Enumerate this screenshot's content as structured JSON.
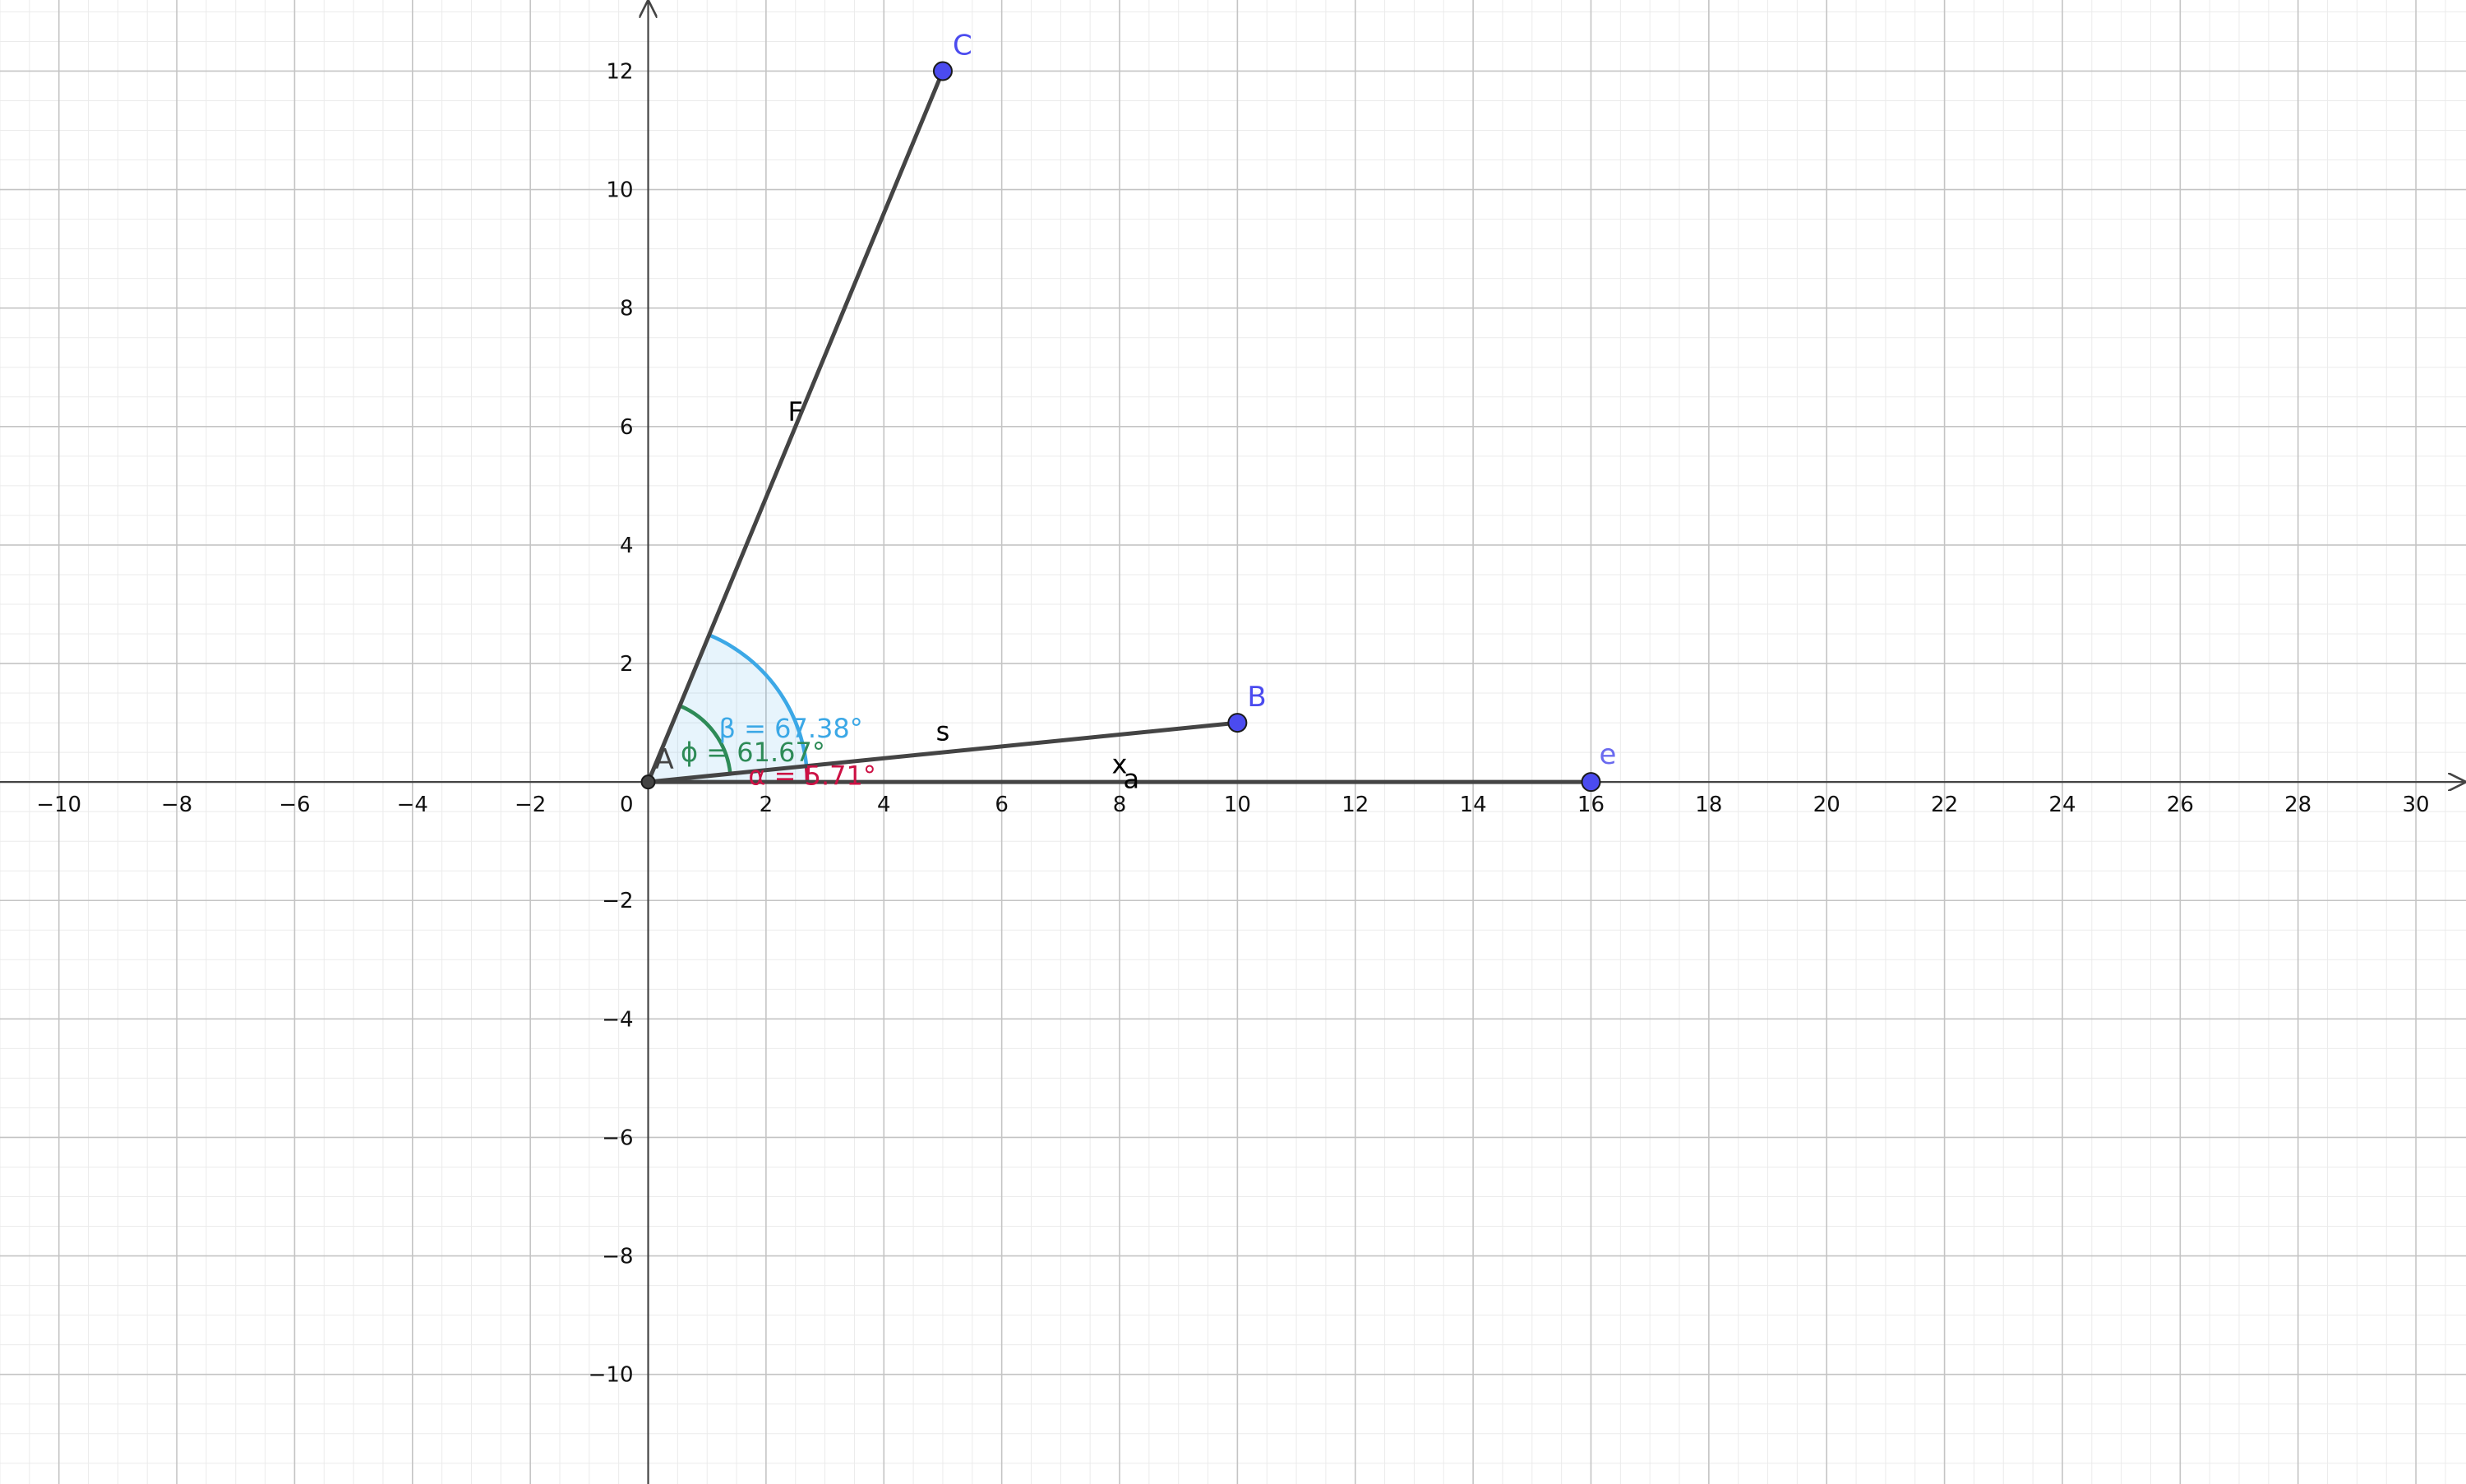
{
  "graph": {
    "x_range": [
      -11,
      30.85
    ],
    "y_range": [
      -11.85,
      13.2
    ],
    "x_ticks": [
      -10,
      -8,
      -6,
      -4,
      -2,
      2,
      4,
      6,
      8,
      10,
      12,
      14,
      16,
      18,
      20,
      22,
      24,
      26,
      28,
      30
    ],
    "y_ticks": [
      -10,
      -8,
      -6,
      -4,
      -2,
      2,
      4,
      6,
      8,
      10,
      12
    ],
    "origin_label": "0",
    "major_grid_step": 2,
    "minor_grid_step": 0.5,
    "colors": {
      "point_blue": "#4b4bef",
      "point_origin": "#444444",
      "vector": "#444444",
      "angle_beta": "#3ca8e6",
      "angle_phi": "#2e8b57",
      "angle_alpha": "#cc1144",
      "label_blue": "#4b4bef",
      "label_e": "#6a6aef"
    }
  },
  "points": [
    {
      "id": "A",
      "label": "A",
      "x": 0,
      "y": 0
    },
    {
      "id": "B",
      "label": "B",
      "x": 10,
      "y": 1
    },
    {
      "id": "C",
      "label": "C",
      "x": 5,
      "y": 12
    },
    {
      "id": "e",
      "label": "e",
      "x": 16,
      "y": 0
    }
  ],
  "vectors": [
    {
      "id": "F",
      "label": "F",
      "from": [
        0,
        0
      ],
      "to": [
        5,
        12
      ],
      "label_at": [
        2.5,
        6.1
      ]
    },
    {
      "id": "s",
      "label": "s",
      "from": [
        0,
        0
      ],
      "to": [
        10,
        1
      ],
      "label_at": [
        5,
        0.7
      ]
    },
    {
      "id": "a",
      "label": "a",
      "from": [
        0,
        0
      ],
      "to": [
        16,
        0
      ],
      "label_at": [
        8.2,
        -0.1
      ]
    }
  ],
  "axis_labels": {
    "x": {
      "text": "x",
      "at": [
        8.0,
        0.15
      ]
    }
  },
  "angles": [
    {
      "id": "beta",
      "label": "β = 67.38°",
      "from_deg": 0,
      "to_deg": 67.38,
      "radius": 2.7,
      "filled": true,
      "label_at": [
        1.2,
        0.75
      ]
    },
    {
      "id": "phi",
      "label": "ϕ = 61.67°",
      "from_deg": 5.71,
      "to_deg": 67.38,
      "radius": 1.4,
      "filled": false,
      "label_at": [
        0.55,
        0.35
      ]
    },
    {
      "id": "alpha",
      "label": "α = 5.71°",
      "from_deg": 0,
      "to_deg": 5.71,
      "radius": 2.7,
      "filled": false,
      "label_at": [
        1.7,
        -0.05
      ]
    }
  ]
}
